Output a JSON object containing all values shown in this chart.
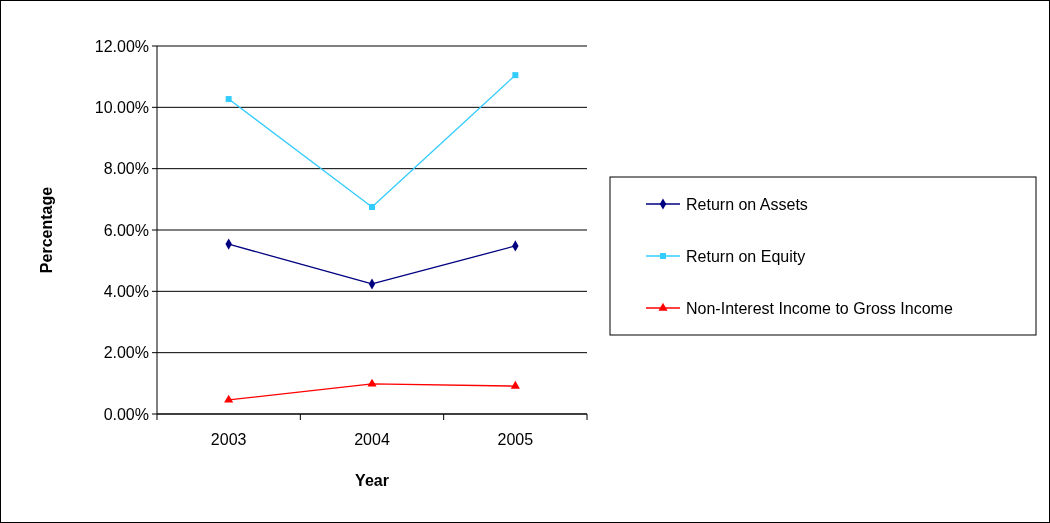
{
  "chart_data": {
    "type": "line",
    "xlabel": "Year",
    "ylabel": "Percentage",
    "categories": [
      "2003",
      "2004",
      "2005"
    ],
    "series": [
      {
        "name": "Return on Assets",
        "color": "#000080",
        "marker": "diamond",
        "values": [
          5.54,
          4.24,
          5.48
        ]
      },
      {
        "name": "Return on Equity",
        "color": "#33ccff",
        "marker": "square",
        "values": [
          10.27,
          6.75,
          11.05
        ]
      },
      {
        "name": "Non-Interest Income to Gross Income",
        "color": "#ff0000",
        "marker": "triangle",
        "values": [
          0.46,
          0.98,
          0.91
        ]
      }
    ],
    "ylim": [
      0,
      12
    ],
    "yticks": [
      {
        "value": 0,
        "label": "0.00%"
      },
      {
        "value": 2,
        "label": "2.00%"
      },
      {
        "value": 4,
        "label": "4.00%"
      },
      {
        "value": 6,
        "label": "6.00%"
      },
      {
        "value": 8,
        "label": "8.00%"
      },
      {
        "value": 10,
        "label": "10.00%"
      },
      {
        "value": 12,
        "label": "12.00%"
      }
    ],
    "grid": "y",
    "legend": "right"
  }
}
